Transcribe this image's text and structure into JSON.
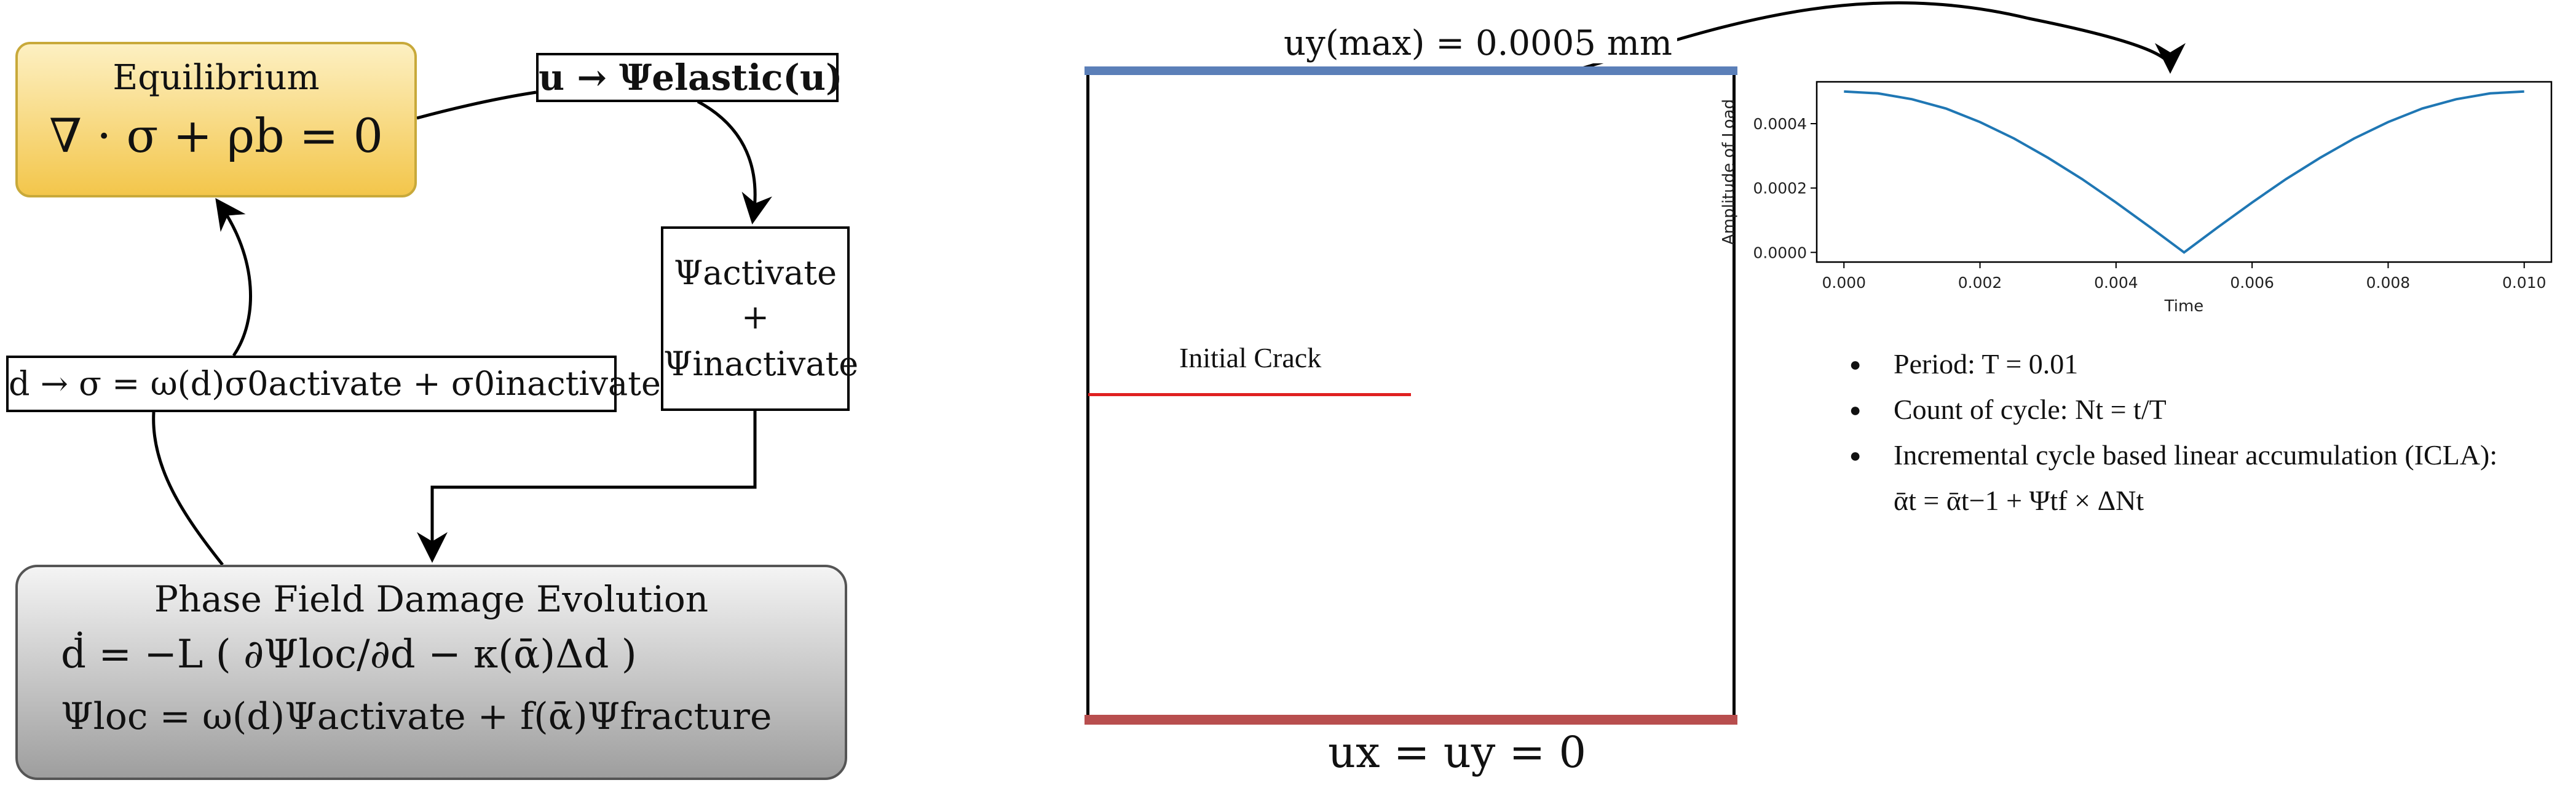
{
  "equilibrium": {
    "title": "Equilibrium",
    "equation": "∇ · σ + ρb = 0"
  },
  "elastic_map": "u → Ψelastic(u)",
  "split_box": {
    "activate": "Ψactivate",
    "plus": "+",
    "inactivate": "Ψinactivate"
  },
  "stress_map": "d → σ = ω(d)σ0activate + σ0inactivate",
  "damage": {
    "title": "Phase Field Damage Evolution",
    "eq1": "ḋ = −L ( ∂Ψloc/∂d − κ(ᾱ)Δd )",
    "eq2": "Ψloc = ω(d)Ψactivate + f(ᾱ)Ψfracture"
  },
  "specimen": {
    "top_bc": "uy(max) = 0.0005 mm",
    "bottom_bc": "ux = uy = 0",
    "crack_label": "Initial Crack",
    "colors": {
      "top_edge": "#5b7fb8",
      "bottom_edge": "#b84e4e",
      "crack": "#e02020"
    }
  },
  "chart_data": {
    "type": "line",
    "xlabel": "Time",
    "ylabel": "Amplitude of Load",
    "xlim": [
      -0.0004,
      0.0104
    ],
    "ylim": [
      -3e-05,
      0.00053
    ],
    "x_ticks": [
      "0.000",
      "0.002",
      "0.004",
      "0.006",
      "0.008",
      "0.010"
    ],
    "y_ticks": [
      "0.0000",
      "0.0002",
      "0.0004"
    ],
    "x": [
      0,
      0.0005,
      0.001,
      0.0015,
      0.002,
      0.0025,
      0.003,
      0.0035,
      0.004,
      0.0045,
      0.005,
      0.0055,
      0.006,
      0.0065,
      0.007,
      0.0075,
      0.008,
      0.0085,
      0.009,
      0.0095,
      0.01
    ],
    "series": [
      {
        "values": [
          0.0005,
          0.000494,
          0.000476,
          0.000447,
          0.000405,
          0.000354,
          0.000294,
          0.000228,
          0.000155,
          7.86e-05,
          0,
          7.86e-05,
          0.000155,
          0.000228,
          0.000294,
          0.000354,
          0.000405,
          0.000447,
          0.000476,
          0.000494,
          0.0005
        ],
        "color": "#1f77b4"
      }
    ],
    "grid": false
  },
  "bullets": [
    "Period: T = 0.01",
    "Count of cycle: Nt = t/T",
    "Incremental cycle based linear accumulation (ICLA): ᾱt = ᾱt−1 + Ψtf × ΔNt"
  ]
}
